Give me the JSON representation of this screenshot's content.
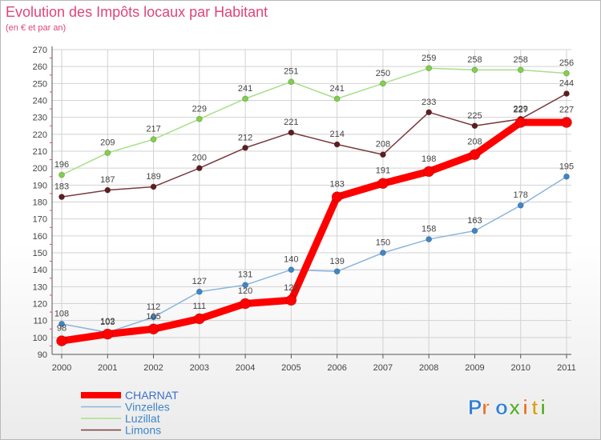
{
  "title": "Evolution des Impôts locaux par Habitant",
  "subtitle": "(en € et par an)",
  "logo": {
    "text": "Proxiti",
    "colors": [
      "#2e7fd6",
      "#e8742a",
      "#2e7fd6",
      "#5cb034",
      "#e8742a",
      "#d6a21e",
      "#5cb034"
    ]
  },
  "chart_data": {
    "type": "line",
    "title": "Evolution des Impôts locaux par Habitant",
    "subtitle": "(en € et par an)",
    "xlabel": "",
    "ylabel": "",
    "x": [
      "2000",
      "2001",
      "2002",
      "2003",
      "2004",
      "2005",
      "2006",
      "2007",
      "2008",
      "2009",
      "2010",
      "2011"
    ],
    "ylim": [
      90,
      270
    ],
    "yticks": [
      90,
      100,
      110,
      120,
      130,
      140,
      150,
      160,
      170,
      180,
      190,
      200,
      210,
      220,
      230,
      240,
      250,
      260,
      270
    ],
    "grid": true,
    "legend_position": "bottom-left",
    "series": [
      {
        "name": "Luzillat",
        "color": "#7fd14a",
        "stroke": "#a9de8a",
        "width": 1.5,
        "r": 3.5,
        "values": [
          196,
          209,
          217,
          229,
          241,
          251,
          241,
          250,
          259,
          258,
          258,
          256
        ]
      },
      {
        "name": "Limons",
        "color": "#5e1d20",
        "stroke": "#7a3b3e",
        "width": 1.5,
        "r": 3.5,
        "values": [
          183,
          187,
          189,
          200,
          212,
          221,
          214,
          208,
          233,
          225,
          229,
          244
        ]
      },
      {
        "name": "Vinzelles",
        "color": "#3d86c9",
        "stroke": "#8bb5dd",
        "width": 1.5,
        "r": 3.5,
        "values": [
          108,
          103,
          112,
          127,
          131,
          140,
          139,
          150,
          158,
          163,
          178,
          195
        ]
      },
      {
        "name": "CHARNAT",
        "color": "#ff0000",
        "stroke": "#ff0000",
        "width": 9,
        "r": 6.5,
        "values": [
          98,
          102,
          105,
          111,
          120,
          122,
          183,
          191,
          198,
          208,
          227,
          227
        ]
      }
    ],
    "legend_order": [
      "CHARNAT",
      "Vinzelles",
      "Luzillat",
      "Limons"
    ]
  }
}
